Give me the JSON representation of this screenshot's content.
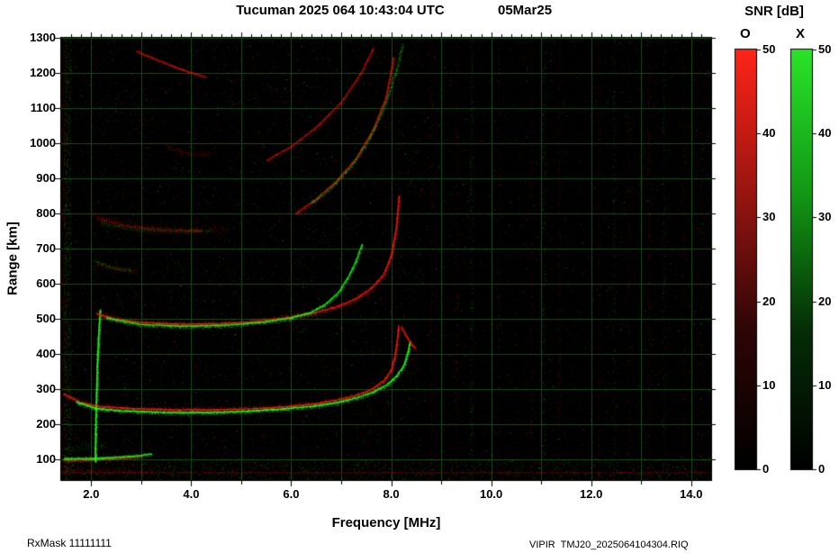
{
  "header": {
    "title": "Tucuman 2025 064 10:43:04 UTC",
    "date": "05Mar25"
  },
  "footer": {
    "rx_mask": "RxMask 11111111",
    "file": "VIPIR  TMJ20_2025064104304.RIQ"
  },
  "chart_data": {
    "type": "heatmap",
    "title": "Tucuman 2025 064 10:43:04 UTC  05Mar25",
    "xlabel": "Frequency [MHz]",
    "ylabel": "Range [km]",
    "xlim": [
      1.4,
      14.4
    ],
    "ylim": [
      40,
      1300
    ],
    "x_ticks": [
      2,
      4,
      6,
      8,
      10,
      12,
      14
    ],
    "x_tick_labels": [
      "2.0",
      "4.0",
      "6.0",
      "8.0",
      "10.0",
      "12.0",
      "14.0"
    ],
    "y_ticks": [
      100,
      200,
      300,
      400,
      500,
      600,
      700,
      800,
      900,
      1000,
      1100,
      1200,
      1300
    ],
    "grid": true,
    "grid_color": "#164a16",
    "plot_background": "#000000",
    "colorbar_title": "SNR [dB]",
    "colorbars": [
      {
        "label": "O",
        "max": 50,
        "ticks": [
          0,
          10,
          20,
          30,
          40,
          50
        ],
        "stops": [
          [
            0,
            "#000000"
          ],
          [
            0.33,
            "#2d0606"
          ],
          [
            0.66,
            "#991510"
          ],
          [
            1,
            "#ff2418"
          ]
        ]
      },
      {
        "label": "X",
        "max": 50,
        "ticks": [
          0,
          10,
          20,
          30,
          40,
          50
        ],
        "stops": [
          [
            0,
            "#000000"
          ],
          [
            0.33,
            "#052d06"
          ],
          [
            0.66,
            "#129915"
          ],
          [
            1,
            "#2ae428"
          ]
        ]
      }
    ],
    "mode_colors": {
      "O": "#ff2014",
      "X": "#2aff22"
    },
    "traces": [
      {
        "name": "E-layer-O",
        "mode": "O",
        "width": 9,
        "intensity": 0.65,
        "core": true,
        "points": [
          [
            1.45,
            95
          ],
          [
            2.0,
            98
          ],
          [
            2.6,
            102
          ],
          [
            3.0,
            107
          ]
        ]
      },
      {
        "name": "E-layer-X",
        "mode": "X",
        "width": 9,
        "intensity": 0.9,
        "core": true,
        "points": [
          [
            1.45,
            101
          ],
          [
            1.9,
            101
          ],
          [
            2.4,
            104
          ],
          [
            2.9,
            109
          ],
          [
            3.2,
            114
          ]
        ]
      },
      {
        "name": "E-diffuse-X",
        "mode": "X",
        "width": 28,
        "intensity": 0.22,
        "core": false,
        "points": [
          [
            1.5,
            130
          ],
          [
            1.9,
            136
          ],
          [
            2.3,
            142
          ]
        ]
      },
      {
        "name": "bottom-red-band",
        "mode": "O",
        "width": 18,
        "intensity": 0.28,
        "core": false,
        "points": [
          [
            1.45,
            70
          ],
          [
            2.2,
            67
          ],
          [
            3.2,
            64
          ]
        ]
      },
      {
        "name": "bottom-red-line",
        "mode": "O",
        "width": 4,
        "intensity": 0.22,
        "core": false,
        "points": [
          [
            1.4,
            62
          ],
          [
            8.0,
            62
          ],
          [
            14.4,
            62
          ]
        ]
      },
      {
        "name": "plasma-spike-X",
        "mode": "X",
        "width": 5,
        "intensity": 1.0,
        "core": true,
        "points": [
          [
            2.08,
            92
          ],
          [
            2.1,
            250
          ],
          [
            2.13,
            400
          ],
          [
            2.18,
            525
          ]
        ]
      },
      {
        "name": "F-1hop-O",
        "mode": "O",
        "width": 14,
        "intensity": 0.9,
        "core": true,
        "points": [
          [
            1.45,
            285
          ],
          [
            1.8,
            260
          ],
          [
            2.2,
            249
          ],
          [
            2.8,
            244
          ],
          [
            3.6,
            240
          ],
          [
            4.5,
            240
          ],
          [
            5.2,
            243
          ],
          [
            5.9,
            249
          ],
          [
            6.5,
            258
          ],
          [
            6.9,
            268
          ],
          [
            7.3,
            281
          ],
          [
            7.6,
            298
          ],
          [
            7.85,
            322
          ],
          [
            8.0,
            352
          ],
          [
            8.08,
            395
          ],
          [
            8.13,
            445
          ],
          [
            8.15,
            480
          ]
        ]
      },
      {
        "name": "F-1hop-X",
        "mode": "X",
        "width": 11,
        "intensity": 1.0,
        "core": true,
        "points": [
          [
            1.7,
            262
          ],
          [
            2.1,
            244
          ],
          [
            2.6,
            237
          ],
          [
            3.4,
            233
          ],
          [
            4.3,
            232
          ],
          [
            5.1,
            236
          ],
          [
            5.8,
            242
          ],
          [
            6.4,
            250
          ],
          [
            6.9,
            260
          ],
          [
            7.25,
            272
          ],
          [
            7.6,
            288
          ],
          [
            7.9,
            310
          ],
          [
            8.1,
            335
          ],
          [
            8.25,
            365
          ],
          [
            8.33,
            400
          ],
          [
            8.38,
            435
          ]
        ]
      },
      {
        "name": "F-1hop-O-curl",
        "mode": "O",
        "width": 8,
        "intensity": 0.7,
        "core": true,
        "points": [
          [
            8.2,
            478
          ],
          [
            8.3,
            450
          ],
          [
            8.4,
            428
          ],
          [
            8.48,
            415
          ]
        ]
      },
      {
        "name": "F-2hop-O",
        "mode": "O",
        "width": 16,
        "intensity": 0.85,
        "core": true,
        "points": [
          [
            2.1,
            515
          ],
          [
            2.5,
            498
          ],
          [
            3.0,
            489
          ],
          [
            3.8,
            484
          ],
          [
            4.6,
            486
          ],
          [
            5.3,
            492
          ],
          [
            5.9,
            502
          ],
          [
            6.4,
            514
          ],
          [
            6.9,
            533
          ],
          [
            7.3,
            557
          ],
          [
            7.6,
            586
          ],
          [
            7.85,
            624
          ],
          [
            8.0,
            678
          ],
          [
            8.1,
            755
          ],
          [
            8.16,
            850
          ]
        ]
      },
      {
        "name": "F-2hop-X",
        "mode": "X",
        "width": 12,
        "intensity": 0.85,
        "core": true,
        "points": [
          [
            2.3,
            502
          ],
          [
            3.0,
            483
          ],
          [
            3.9,
            478
          ],
          [
            4.8,
            482
          ],
          [
            5.5,
            491
          ],
          [
            6.0,
            502
          ],
          [
            6.4,
            518
          ],
          [
            6.7,
            542
          ],
          [
            6.95,
            575
          ],
          [
            7.15,
            620
          ],
          [
            7.3,
            665
          ],
          [
            7.42,
            712
          ]
        ]
      },
      {
        "name": "blob-650-X",
        "mode": "X",
        "width": 12,
        "intensity": 0.3,
        "core": false,
        "points": [
          [
            2.05,
            665
          ],
          [
            2.4,
            646
          ],
          [
            2.8,
            638
          ]
        ]
      },
      {
        "name": "blob-650-O",
        "mode": "O",
        "width": 12,
        "intensity": 0.28,
        "core": false,
        "points": [
          [
            2.1,
            656
          ],
          [
            2.5,
            641
          ],
          [
            2.9,
            634
          ]
        ]
      },
      {
        "name": "F-3hop-O-diffuse",
        "mode": "O",
        "width": 30,
        "intensity": 0.3,
        "core": false,
        "points": [
          [
            2.0,
            800
          ],
          [
            2.6,
            772
          ],
          [
            3.3,
            757
          ],
          [
            4.1,
            752
          ],
          [
            4.7,
            758
          ]
        ]
      },
      {
        "name": "F-3hop-O-core",
        "mode": "O",
        "width": 10,
        "intensity": 0.45,
        "core": false,
        "points": [
          [
            2.1,
            785
          ],
          [
            2.7,
            765
          ],
          [
            3.4,
            754
          ],
          [
            4.2,
            751
          ]
        ]
      },
      {
        "name": "F-3hop-X",
        "mode": "X",
        "width": 14,
        "intensity": 0.22,
        "core": false,
        "points": [
          [
            2.2,
            772
          ],
          [
            3.0,
            753
          ],
          [
            3.8,
            749
          ],
          [
            4.4,
            753
          ]
        ]
      },
      {
        "name": "blob-4hop-O",
        "mode": "O",
        "width": 14,
        "intensity": 0.28,
        "core": false,
        "points": [
          [
            3.5,
            990
          ],
          [
            4.0,
            968
          ],
          [
            4.4,
            972
          ]
        ]
      },
      {
        "name": "arc-high-B-O",
        "mode": "O",
        "width": 14,
        "intensity": 0.5,
        "core": true,
        "points": [
          [
            5.5,
            950
          ],
          [
            6.0,
            990
          ],
          [
            6.5,
            1045
          ],
          [
            7.0,
            1115
          ],
          [
            7.4,
            1200
          ],
          [
            7.65,
            1272
          ]
        ]
      },
      {
        "name": "arc-high-A-O",
        "mode": "O",
        "width": 15,
        "intensity": 0.6,
        "core": true,
        "points": [
          [
            6.1,
            800
          ],
          [
            6.5,
            840
          ],
          [
            6.9,
            890
          ],
          [
            7.3,
            955
          ],
          [
            7.65,
            1040
          ],
          [
            7.9,
            1130
          ],
          [
            8.05,
            1245
          ]
        ]
      },
      {
        "name": "arc-high-A-X",
        "mode": "X",
        "width": 12,
        "intensity": 0.45,
        "core": false,
        "points": [
          [
            6.4,
            830
          ],
          [
            6.8,
            875
          ],
          [
            7.2,
            935
          ],
          [
            7.55,
            1010
          ],
          [
            7.85,
            1100
          ],
          [
            8.1,
            1205
          ],
          [
            8.22,
            1280
          ]
        ]
      },
      {
        "name": "oblique-topleft-O",
        "mode": "O",
        "width": 9,
        "intensity": 0.55,
        "core": true,
        "points": [
          [
            2.9,
            1262
          ],
          [
            3.4,
            1232
          ],
          [
            3.9,
            1205
          ],
          [
            4.3,
            1188
          ]
        ]
      }
    ],
    "rfi_stripes": [
      {
        "f": 1.45,
        "mode": "O",
        "intensity": 0.3,
        "spread": 4
      },
      {
        "f": 1.52,
        "mode": "X",
        "intensity": 0.35,
        "spread": 4
      },
      {
        "f": 8.8,
        "mode": "O",
        "intensity": 0.1
      },
      {
        "f": 9.3,
        "mode": "O",
        "intensity": 0.08
      },
      {
        "f": 9.6,
        "mode": "X",
        "intensity": 0.1
      },
      {
        "f": 10.15,
        "mode": "O",
        "intensity": 0.09
      },
      {
        "f": 10.8,
        "mode": "O",
        "intensity": 0.07
      },
      {
        "f": 11.05,
        "mode": "X",
        "intensity": 0.08
      },
      {
        "f": 11.35,
        "mode": "O",
        "intensity": 0.09
      },
      {
        "f": 12.15,
        "mode": "O",
        "intensity": 0.08
      },
      {
        "f": 12.45,
        "mode": "X",
        "intensity": 0.07
      },
      {
        "f": 12.75,
        "mode": "O",
        "intensity": 0.08
      },
      {
        "f": 13.15,
        "mode": "O",
        "intensity": 0.1
      },
      {
        "f": 13.45,
        "mode": "X",
        "intensity": 0.07
      },
      {
        "f": 13.85,
        "mode": "O",
        "intensity": 0.07
      },
      {
        "f": 14.2,
        "mode": "O",
        "intensity": 0.08
      }
    ],
    "noise": {
      "base_count": 15000,
      "left_extra_count": 6000,
      "left_max_f": 8.6,
      "bottom_band_count": 2600,
      "bottom_band_max_km": 100,
      "red_fraction": 0.52
    }
  }
}
